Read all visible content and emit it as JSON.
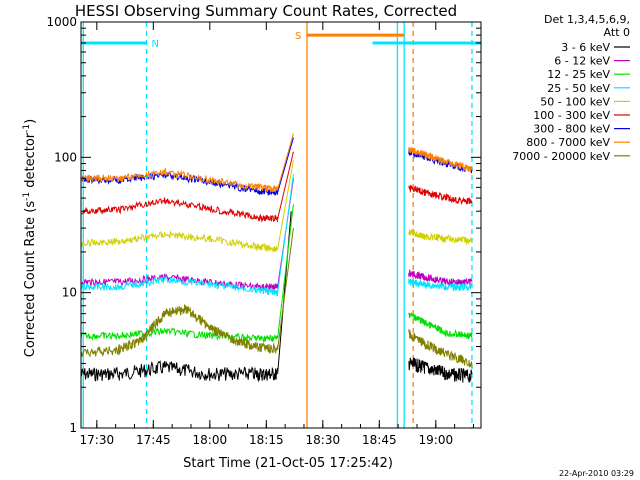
{
  "chart_data": {
    "type": "line",
    "title": "HESSI Observing Summary Count Rates, Corrected",
    "xlabel": "Start Time (21-Oct-05 17:25:42)",
    "ylabel_main": "Corrected Count Rate (s",
    "ylabel_sup1": "-1",
    "ylabel_mid": " detector",
    "ylabel_sup2": "-1",
    "ylabel_end": ")",
    "yscale": "log",
    "ylim": [
      1,
      1000
    ],
    "xlim_minutes": [
      17.43,
      19.2
    ],
    "x_unit": "hours since 21-Oct-05 00:00",
    "x_ticks": [
      {
        "label": "17:30",
        "value": 17.5
      },
      {
        "label": "17:45",
        "value": 17.75
      },
      {
        "label": "18:00",
        "value": 18.0
      },
      {
        "label": "18:15",
        "value": 18.25
      },
      {
        "label": "18:30",
        "value": 18.5
      },
      {
        "label": "18:45",
        "value": 18.75
      },
      {
        "label": "19:00",
        "value": 19.0
      }
    ],
    "y_ticks": [
      {
        "label": "1",
        "value": 1
      },
      {
        "label": "10",
        "value": 10
      },
      {
        "label": "100",
        "value": 100
      },
      {
        "label": "1000",
        "value": 1000
      }
    ],
    "legend_header": [
      "Det 1,3,4,5,6,9,",
      "Att 0"
    ],
    "legend_position": "right",
    "timestamp": "22-Apr-2010 03:29",
    "flags": [
      {
        "label": "N",
        "color": "#00e5ff",
        "segments": [
          [
            17.43,
            17.72
          ],
          [
            18.72,
            19.2
          ]
        ],
        "level": 700
      },
      {
        "label": "S",
        "color": "#ff8000",
        "segments": [
          [
            18.43,
            18.86
          ]
        ],
        "level": 800
      }
    ],
    "vlines": [
      {
        "x": 17.44,
        "color": "#00e5ff",
        "style": "solid"
      },
      {
        "x": 17.72,
        "color": "#00e5ff",
        "style": "dashed"
      },
      {
        "x": 18.43,
        "color": "#ff8000",
        "style": "solid"
      },
      {
        "x": 18.83,
        "color": "#00e5ff",
        "style": "solid"
      },
      {
        "x": 18.86,
        "color": "#00e5ff",
        "style": "solid"
      },
      {
        "x": 18.9,
        "color": "#ff8000",
        "style": "dashed"
      },
      {
        "x": 19.16,
        "color": "#00e5ff",
        "style": "dashed"
      }
    ],
    "series": [
      {
        "name": "3 - 6 keV",
        "color": "#000000",
        "before": {
          "x": [
            17.43,
            17.6,
            17.8,
            18.0,
            18.2,
            18.3
          ],
          "y": [
            2.5,
            2.5,
            2.8,
            2.5,
            2.5,
            2.5
          ]
        },
        "rise": [
          [
            18.3,
            2.5
          ],
          [
            18.36,
            40
          ]
        ],
        "after": {
          "x": [
            18.88,
            18.95,
            19.05,
            19.16
          ],
          "y": [
            3,
            2.8,
            2.5,
            2.4
          ]
        }
      },
      {
        "name": "6 - 12 keV",
        "color": "#c000c0",
        "before": {
          "x": [
            17.43,
            17.6,
            17.8,
            18.0,
            18.2,
            18.3
          ],
          "y": [
            12,
            12,
            13,
            12,
            11,
            11
          ]
        },
        "rise": [
          [
            18.3,
            11
          ],
          [
            18.37,
            70
          ]
        ],
        "after": {
          "x": [
            18.88,
            18.95,
            19.05,
            19.16
          ],
          "y": [
            14,
            13,
            12,
            12
          ]
        }
      },
      {
        "name": "12 - 25 keV",
        "color": "#00e000",
        "before": {
          "x": [
            17.43,
            17.6,
            17.8,
            18.0,
            18.2,
            18.3
          ],
          "y": [
            4.8,
            4.8,
            5.2,
            4.8,
            4.6,
            4.6
          ]
        },
        "rise": [
          [
            18.3,
            4.6
          ],
          [
            18.37,
            45
          ]
        ],
        "after": {
          "x": [
            18.88,
            18.95,
            19.05,
            19.16
          ],
          "y": [
            7,
            6,
            5,
            4.8
          ]
        }
      },
      {
        "name": "25 - 50 keV",
        "color": "#00e5ff",
        "before": {
          "x": [
            17.43,
            17.6,
            17.8,
            18.0,
            18.2,
            18.3
          ],
          "y": [
            11,
            11,
            12.5,
            11.5,
            10.5,
            10
          ]
        },
        "rise": [
          [
            18.3,
            10
          ],
          [
            18.37,
            75
          ]
        ],
        "after": {
          "x": [
            18.88,
            18.95,
            19.05,
            19.16
          ],
          "y": [
            12,
            11.5,
            11,
            11
          ]
        }
      },
      {
        "name": "50 - 100 keV",
        "color": "#d0d000",
        "before": {
          "x": [
            17.43,
            17.6,
            17.8,
            18.0,
            18.2,
            18.3
          ],
          "y": [
            23,
            24,
            27,
            25,
            22,
            21
          ]
        },
        "rise": [
          [
            18.3,
            21
          ],
          [
            18.37,
            95
          ]
        ],
        "after": {
          "x": [
            18.88,
            18.95,
            19.05,
            19.16
          ],
          "y": [
            28,
            26,
            25,
            24
          ]
        }
      },
      {
        "name": "100 - 300 keV",
        "color": "#e00000",
        "before": {
          "x": [
            17.43,
            17.6,
            17.8,
            18.0,
            18.2,
            18.3
          ],
          "y": [
            40,
            41,
            48,
            42,
            36,
            35
          ]
        },
        "rise": [
          [
            18.3,
            35
          ],
          [
            18.37,
            110
          ]
        ],
        "after": {
          "x": [
            18.88,
            18.95,
            19.05,
            19.16
          ],
          "y": [
            60,
            55,
            50,
            47
          ]
        }
      },
      {
        "name": "300 - 800 keV",
        "color": "#0000e0",
        "before": {
          "x": [
            17.43,
            17.6,
            17.8,
            18.0,
            18.2,
            18.3
          ],
          "y": [
            68,
            68,
            74,
            66,
            57,
            55
          ]
        },
        "rise": [
          [
            18.3,
            55
          ],
          [
            18.37,
            140
          ]
        ],
        "after": {
          "x": [
            18.88,
            18.95,
            19.05,
            19.16
          ],
          "y": [
            110,
            100,
            90,
            80
          ]
        }
      },
      {
        "name": "800 - 7000 keV",
        "color": "#ff8000",
        "before": {
          "x": [
            17.43,
            17.6,
            17.8,
            18.0,
            18.2,
            18.3
          ],
          "y": [
            70,
            70,
            78,
            68,
            60,
            58
          ]
        },
        "rise": [
          [
            18.3,
            58
          ],
          [
            18.37,
            150
          ]
        ],
        "after": {
          "x": [
            18.88,
            18.95,
            19.05,
            19.16
          ],
          "y": [
            115,
            105,
            92,
            82
          ]
        }
      },
      {
        "name": "7000 - 20000 keV",
        "color": "#808000",
        "before": {
          "x": [
            17.43,
            17.6,
            17.7,
            17.8,
            17.9,
            18.0,
            18.1,
            18.2,
            18.3
          ],
          "y": [
            3.5,
            3.8,
            4.5,
            7,
            7.5,
            5.5,
            4.5,
            4,
            3.8
          ]
        },
        "rise": [
          [
            18.3,
            3.8
          ],
          [
            18.37,
            30
          ]
        ],
        "after": {
          "x": [
            18.88,
            18.95,
            19.05,
            19.16
          ],
          "y": [
            5,
            4.2,
            3.5,
            3
          ]
        }
      }
    ]
  }
}
